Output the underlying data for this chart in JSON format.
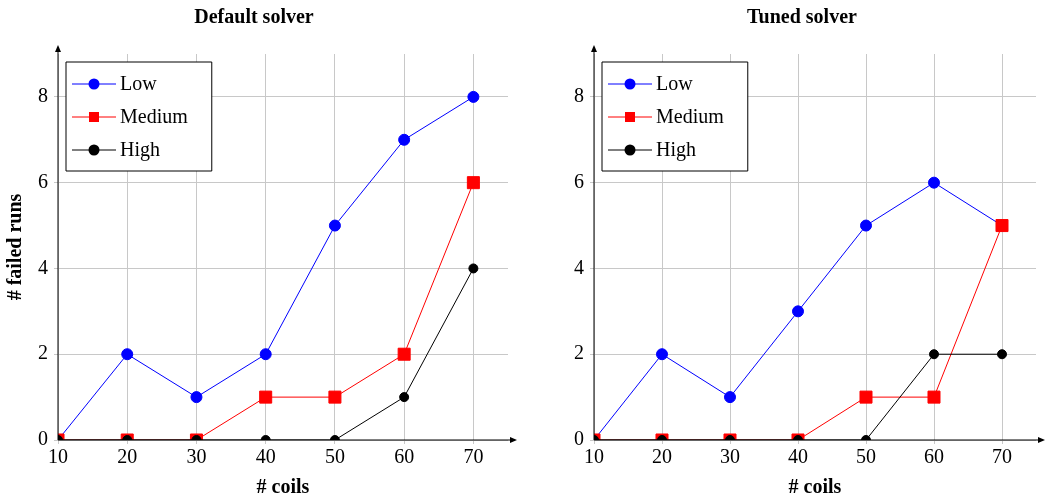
{
  "chart_data": [
    {
      "type": "line",
      "title": "Default solver",
      "xlabel": "# coils",
      "ylabel": "# failed runs",
      "x": [
        10,
        20,
        30,
        40,
        50,
        60,
        70
      ],
      "xlim": [
        10,
        75
      ],
      "xticks": [
        10,
        20,
        30,
        40,
        50,
        60,
        70
      ],
      "ylim": [
        0,
        9
      ],
      "yticks": [
        0,
        2,
        4,
        6,
        8
      ],
      "grid": true,
      "legend": "top left",
      "series": [
        {
          "name": "Low",
          "color": "#0000ff",
          "marker": "circle",
          "values": [
            0,
            2,
            1,
            2,
            5,
            7,
            8
          ]
        },
        {
          "name": "Medium",
          "color": "#ff0000",
          "marker": "square",
          "values": [
            0,
            0,
            0,
            1,
            1,
            2,
            6
          ]
        },
        {
          "name": "High",
          "color": "#000000",
          "marker": "circle",
          "values": [
            0,
            0,
            0,
            0,
            0,
            1,
            4
          ]
        }
      ]
    },
    {
      "type": "line",
      "title": "Tuned solver",
      "xlabel": "# coils",
      "x": [
        10,
        20,
        30,
        40,
        50,
        60,
        70
      ],
      "xlim": [
        10,
        75
      ],
      "xticks": [
        10,
        20,
        30,
        40,
        50,
        60,
        70
      ],
      "ylim": [
        0,
        9
      ],
      "yticks": [
        0,
        2,
        4,
        6,
        8
      ],
      "grid": true,
      "legend": "top left",
      "series": [
        {
          "name": "Low",
          "color": "#0000ff",
          "marker": "circle",
          "values": [
            0,
            2,
            1,
            3,
            5,
            6,
            5
          ]
        },
        {
          "name": "Medium",
          "color": "#ff0000",
          "marker": "square",
          "values": [
            0,
            0,
            0,
            0,
            1,
            1,
            5
          ]
        },
        {
          "name": "High",
          "color": "#000000",
          "marker": "circle",
          "values": [
            0,
            0,
            0,
            0,
            0,
            2,
            2
          ]
        }
      ]
    }
  ]
}
